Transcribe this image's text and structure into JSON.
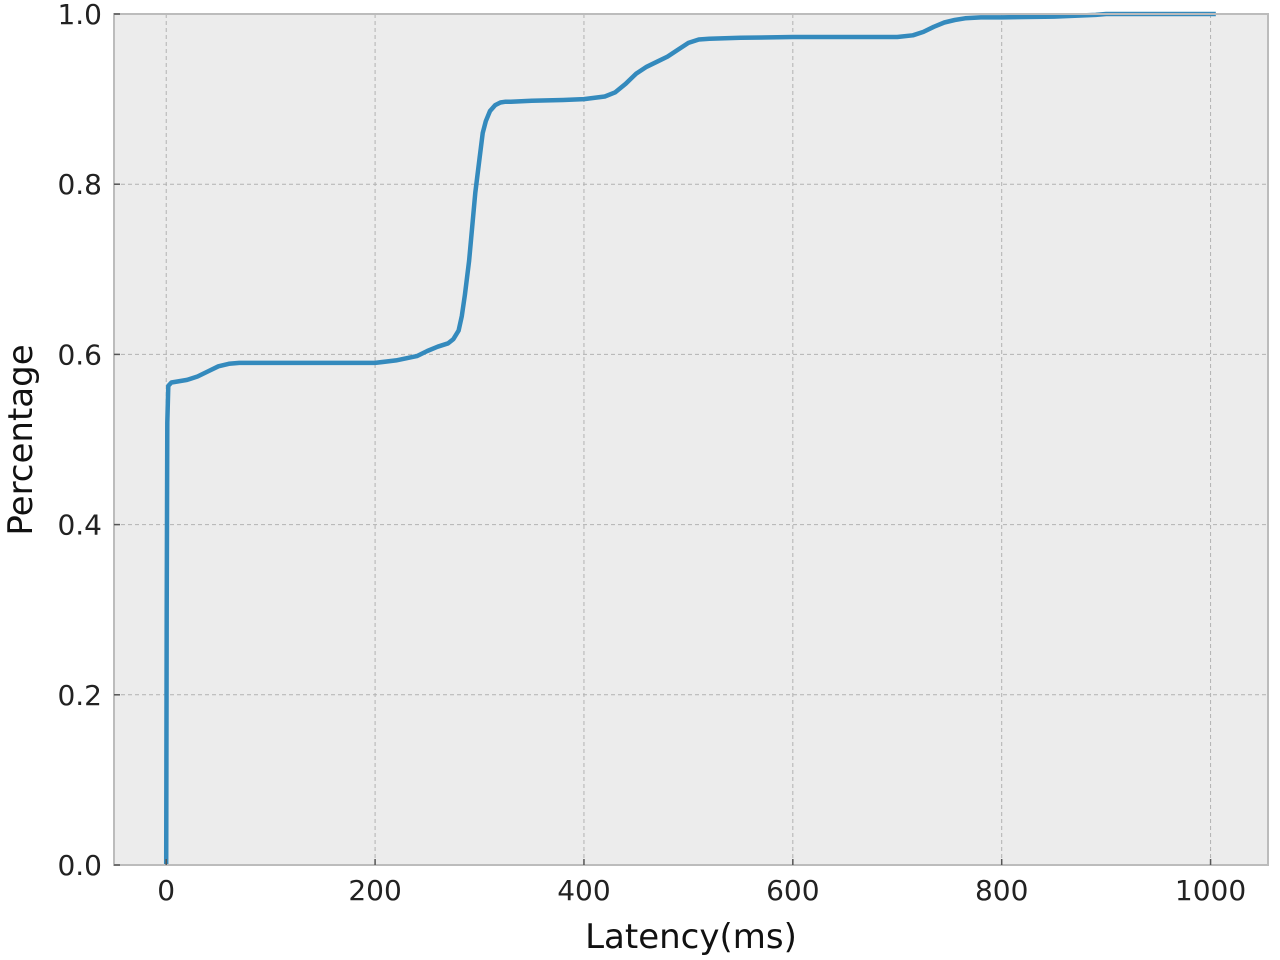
{
  "chart_data": {
    "type": "line",
    "title": "",
    "xlabel": "Latency(ms)",
    "ylabel": "Percentage",
    "xlim": [
      -50,
      1055
    ],
    "ylim": [
      0.0,
      1.0
    ],
    "grid": true,
    "legend": "none",
    "x_ticks": [
      "0",
      "200",
      "400",
      "600",
      "800",
      "1000"
    ],
    "y_ticks": [
      "0.0",
      "0.2",
      "0.4",
      "0.6",
      "0.8",
      "1.0"
    ],
    "series": [
      {
        "x": [
          0,
          0.5,
          1,
          2,
          5,
          10,
          20,
          30,
          40,
          50,
          60,
          70,
          80,
          100,
          150,
          200,
          220,
          240,
          250,
          260,
          270,
          275,
          280,
          283,
          286,
          290,
          293,
          296,
          300,
          303,
          306,
          310,
          315,
          320,
          325,
          330,
          350,
          380,
          400,
          420,
          430,
          440,
          450,
          460,
          470,
          480,
          490,
          500,
          510,
          520,
          550,
          600,
          650,
          700,
          715,
          725,
          735,
          745,
          755,
          765,
          780,
          800,
          850,
          870,
          890,
          900,
          950,
          1005
        ],
        "y": [
          0.0,
          0.3,
          0.52,
          0.563,
          0.567,
          0.568,
          0.57,
          0.574,
          0.58,
          0.586,
          0.589,
          0.59,
          0.59,
          0.59,
          0.59,
          0.59,
          0.593,
          0.598,
          0.604,
          0.609,
          0.613,
          0.618,
          0.628,
          0.645,
          0.67,
          0.71,
          0.75,
          0.79,
          0.83,
          0.86,
          0.874,
          0.886,
          0.893,
          0.896,
          0.897,
          0.897,
          0.898,
          0.899,
          0.9,
          0.903,
          0.908,
          0.918,
          0.93,
          0.938,
          0.944,
          0.95,
          0.958,
          0.966,
          0.97,
          0.971,
          0.972,
          0.973,
          0.973,
          0.973,
          0.975,
          0.979,
          0.985,
          0.99,
          0.993,
          0.995,
          0.996,
          0.996,
          0.997,
          0.998,
          0.999,
          1.0,
          1.0,
          1.0
        ],
        "color": "#348ABD"
      }
    ]
  }
}
